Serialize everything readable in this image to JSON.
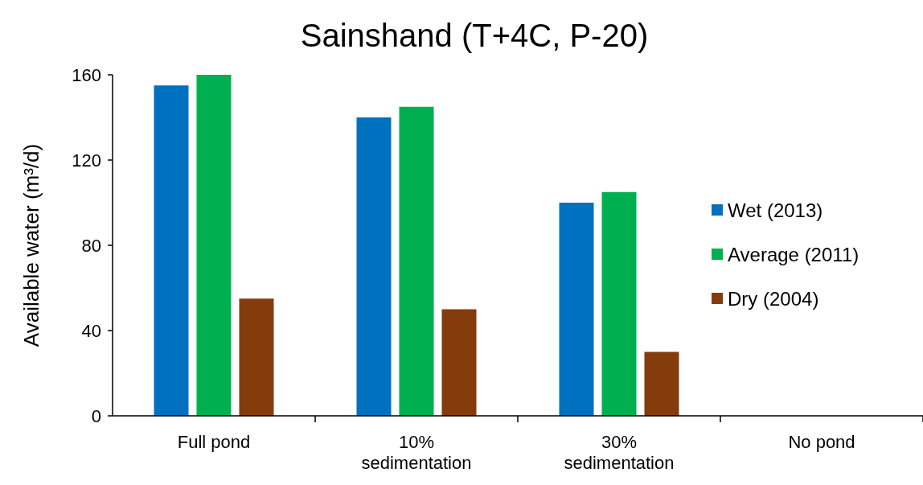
{
  "chart_data": {
    "type": "bar",
    "title": "Sainshand (T+4C, P-20)",
    "ylabel": "Available water (m³/d)",
    "categories": [
      "Full pond",
      "10% sedimentation",
      "30% sedimentation",
      "No pond"
    ],
    "series": [
      {
        "name": "Wet (2013)",
        "color": "#0070c0",
        "values": [
          155,
          140,
          100,
          0
        ]
      },
      {
        "name": "Average (2011)",
        "color": "#00b050",
        "values": [
          160,
          145,
          105,
          0
        ]
      },
      {
        "name": "Dry (2004)",
        "color": "#843c0c",
        "values": [
          55,
          50,
          30,
          0
        ]
      }
    ],
    "ylim": [
      0,
      160
    ],
    "yticks": [
      0,
      40,
      80,
      120,
      160
    ],
    "grid": false,
    "legend": "right"
  }
}
